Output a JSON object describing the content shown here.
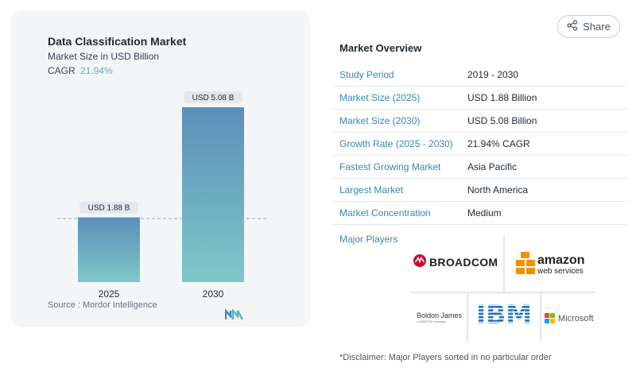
{
  "chart_data": {
    "type": "bar",
    "title": "Data Classification Market",
    "subtitle": "Market Size in USD Billion",
    "cagr_label": "CAGR",
    "cagr_value": "21.94%",
    "categories": [
      "2025",
      "2030"
    ],
    "values": [
      1.88,
      5.08
    ],
    "data_labels": [
      "USD 1.88 B",
      "USD 5.08 B"
    ],
    "colors": {
      "bar_top": "#5b8fb9",
      "bar_bottom": "#7ec8c9"
    },
    "source": "Source :  Mordor Intelligence"
  },
  "share": {
    "label": "Share",
    "icon": "share-icon"
  },
  "overview": {
    "title": "Market Overview",
    "rows": [
      {
        "key": "Study Period",
        "value": "2019 - 2030"
      },
      {
        "key": "Market Size (2025)",
        "value": "USD 1.88 Billion"
      },
      {
        "key": "Market Size (2030)",
        "value": "USD 5.08 Billion"
      },
      {
        "key": "Growth Rate (2025 - 2030)",
        "value": "21.94% CAGR"
      },
      {
        "key": "Fastest Growing Market",
        "value": "Asia Pacific"
      },
      {
        "key": "Largest Market",
        "value": "North America"
      },
      {
        "key": "Market Concentration",
        "value": "Medium"
      }
    ]
  },
  "players": {
    "title": "Major Players",
    "broadcom": "BROADCOM",
    "aws_main": "amazon",
    "aws_sub": "web services",
    "boldon_main": "Boldon James",
    "boldon_sub": "a QINETIQ company",
    "ibm": "IBM",
    "microsoft": "Microsoft"
  },
  "disclaimer": "*Disclaimer: Major Players sorted in no particular order"
}
